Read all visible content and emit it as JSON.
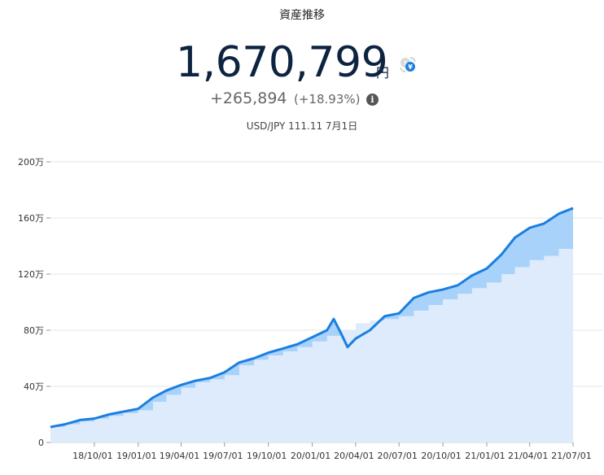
{
  "header": {
    "title": "資産推移",
    "total_value": "1,670,799",
    "currency_unit": "円",
    "change_abs": "+265,894",
    "change_pct": "(+18.93%)",
    "fx_note": "USD/JPY 111.11 7月1日"
  },
  "icons": {
    "currency_toggle": "currency-switch-icon",
    "info": "info-icon"
  },
  "colors": {
    "line": "#1a7fe0",
    "total_fill": "#a9d2fb",
    "principal_fill": "#deebfc",
    "grid": "#e6e6e6",
    "value_text": "#0d2340"
  },
  "chart_data": {
    "type": "area",
    "title": "",
    "xlabel": "",
    "ylabel": "",
    "grid": true,
    "legend": "none",
    "ylim": [
      0,
      200
    ],
    "y_ticks": [
      "0",
      "40万",
      "80万",
      "120万",
      "160万",
      "200万"
    ],
    "y_tick_values": [
      0,
      40,
      80,
      120,
      160,
      200
    ],
    "x_ticks": [
      "18/10/01",
      "19/01/01",
      "19/04/01",
      "19/07/01",
      "19/10/01",
      "20/01/01",
      "20/04/01",
      "20/07/01",
      "20/10/01",
      "21/01/01",
      "21/04/01",
      "21/07/01"
    ],
    "x_tick_values": [
      "2018-10-01",
      "2019-01-01",
      "2019-04-01",
      "2019-07-01",
      "2019-10-01",
      "2020-01-01",
      "2020-04-01",
      "2020-07-01",
      "2020-10-01",
      "2021-01-01",
      "2021-04-01",
      "2021-07-01"
    ],
    "x_range": [
      "2018-07-01",
      "2021-07-01"
    ],
    "series": [
      {
        "kind": "principal",
        "x": [
          "2018-07-01",
          "2018-08-01",
          "2018-09-01",
          "2018-10-01",
          "2018-11-01",
          "2018-12-01",
          "2019-01-01",
          "2019-02-01",
          "2019-03-01",
          "2019-04-01",
          "2019-05-01",
          "2019-06-01",
          "2019-07-01",
          "2019-08-01",
          "2019-09-01",
          "2019-10-01",
          "2019-11-01",
          "2019-12-01",
          "2020-01-01",
          "2020-02-01",
          "2020-03-01",
          "2020-04-01",
          "2020-05-01",
          "2020-06-01",
          "2020-07-01",
          "2020-08-01",
          "2020-09-01",
          "2020-10-01",
          "2020-11-01",
          "2020-12-01",
          "2021-01-01",
          "2021-02-01",
          "2021-03-01",
          "2021-04-01",
          "2021-05-01",
          "2021-06-01",
          "2021-07-01"
        ],
        "values": [
          11,
          13,
          15,
          17,
          19,
          21,
          23,
          29,
          34,
          39,
          43,
          45,
          48,
          55,
          59,
          62,
          65,
          68,
          72,
          76,
          80,
          85,
          87,
          88,
          90,
          94,
          98,
          102,
          106,
          110,
          114,
          120,
          125,
          130,
          133,
          138,
          141
        ]
      },
      {
        "kind": "total",
        "x": [
          "2018-07-01",
          "2018-08-01",
          "2018-09-01",
          "2018-10-01",
          "2018-11-01",
          "2018-12-01",
          "2019-01-01",
          "2019-02-01",
          "2019-03-01",
          "2019-04-01",
          "2019-05-01",
          "2019-06-01",
          "2019-07-01",
          "2019-08-01",
          "2019-09-01",
          "2019-10-01",
          "2019-11-01",
          "2019-12-01",
          "2020-01-01",
          "2020-02-01",
          "2020-02-15",
          "2020-03-01",
          "2020-03-15",
          "2020-04-01",
          "2020-05-01",
          "2020-06-01",
          "2020-07-01",
          "2020-08-01",
          "2020-09-01",
          "2020-10-01",
          "2020-11-01",
          "2020-12-01",
          "2021-01-01",
          "2021-02-01",
          "2021-03-01",
          "2021-04-01",
          "2021-05-01",
          "2021-06-01",
          "2021-07-01"
        ],
        "values": [
          11,
          13,
          16,
          17,
          20,
          22,
          24,
          32,
          37,
          41,
          44,
          46,
          50,
          57,
          60,
          64,
          67,
          70,
          75,
          80,
          88,
          78,
          68,
          74,
          80,
          90,
          92,
          103,
          107,
          109,
          112,
          119,
          124,
          134,
          146,
          153,
          156,
          163,
          167
        ]
      }
    ]
  }
}
